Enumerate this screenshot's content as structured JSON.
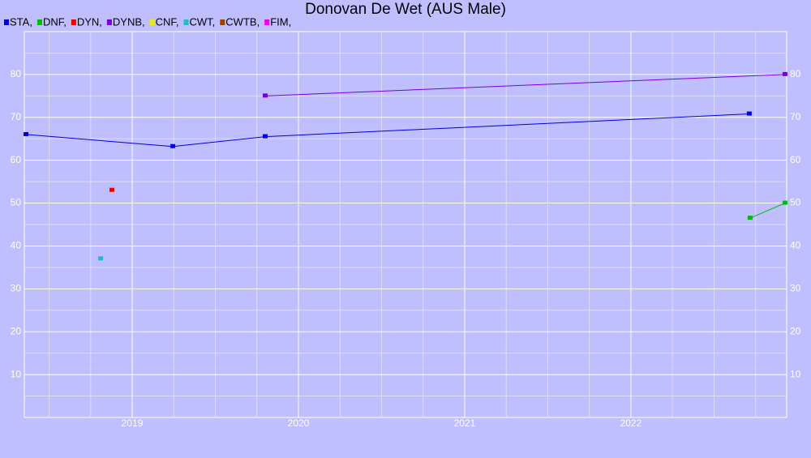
{
  "chart_data": {
    "type": "line",
    "title": "Donovan De Wet (AUS Male)",
    "xlim": [
      2018.351,
      2022.937
    ],
    "xticks": [
      2019,
      2020,
      2021,
      2022
    ],
    "xminorticks": [
      2018.5,
      2018.75,
      2019.25,
      2019.5,
      2019.75,
      2020.25,
      2020.5,
      2020.75,
      2021.25,
      2021.5,
      2021.75,
      2022.25,
      2022.5,
      2022.75
    ],
    "ylim": [
      0,
      90
    ],
    "yticks": [
      10,
      20,
      30,
      40,
      50,
      60,
      70,
      80
    ],
    "yminorticks": [
      5,
      15,
      25,
      35,
      45,
      55,
      65,
      75,
      85
    ],
    "grid": true,
    "series": [
      {
        "name": "STA,",
        "color": "#0000dd",
        "x": [
          2018.361,
          2019.244,
          2019.8,
          2022.712
        ],
        "values": [
          66,
          63.2,
          65.5,
          70.8
        ]
      },
      {
        "name": "DNF,",
        "color": "#00bb00",
        "x": [
          2022.717,
          2022.927
        ],
        "values": [
          46.5,
          50
        ]
      },
      {
        "name": "DYN,",
        "color": "#ee0000",
        "x": [
          2018.878
        ],
        "values": [
          53
        ]
      },
      {
        "name": "DYNB,",
        "color": "#7700dd",
        "x": [
          2019.8,
          2022.927
        ],
        "values": [
          75,
          80
        ]
      },
      {
        "name": "CNF,",
        "color": "#eeee00",
        "x": [],
        "values": []
      },
      {
        "name": "CWT,",
        "color": "#22bbcc",
        "x": [
          2018.81
        ],
        "values": [
          37
        ]
      },
      {
        "name": "CWTB,",
        "color": "#994400",
        "x": [],
        "values": []
      },
      {
        "name": "FIM,",
        "color": "#ee00ee",
        "x": [],
        "values": []
      }
    ]
  }
}
